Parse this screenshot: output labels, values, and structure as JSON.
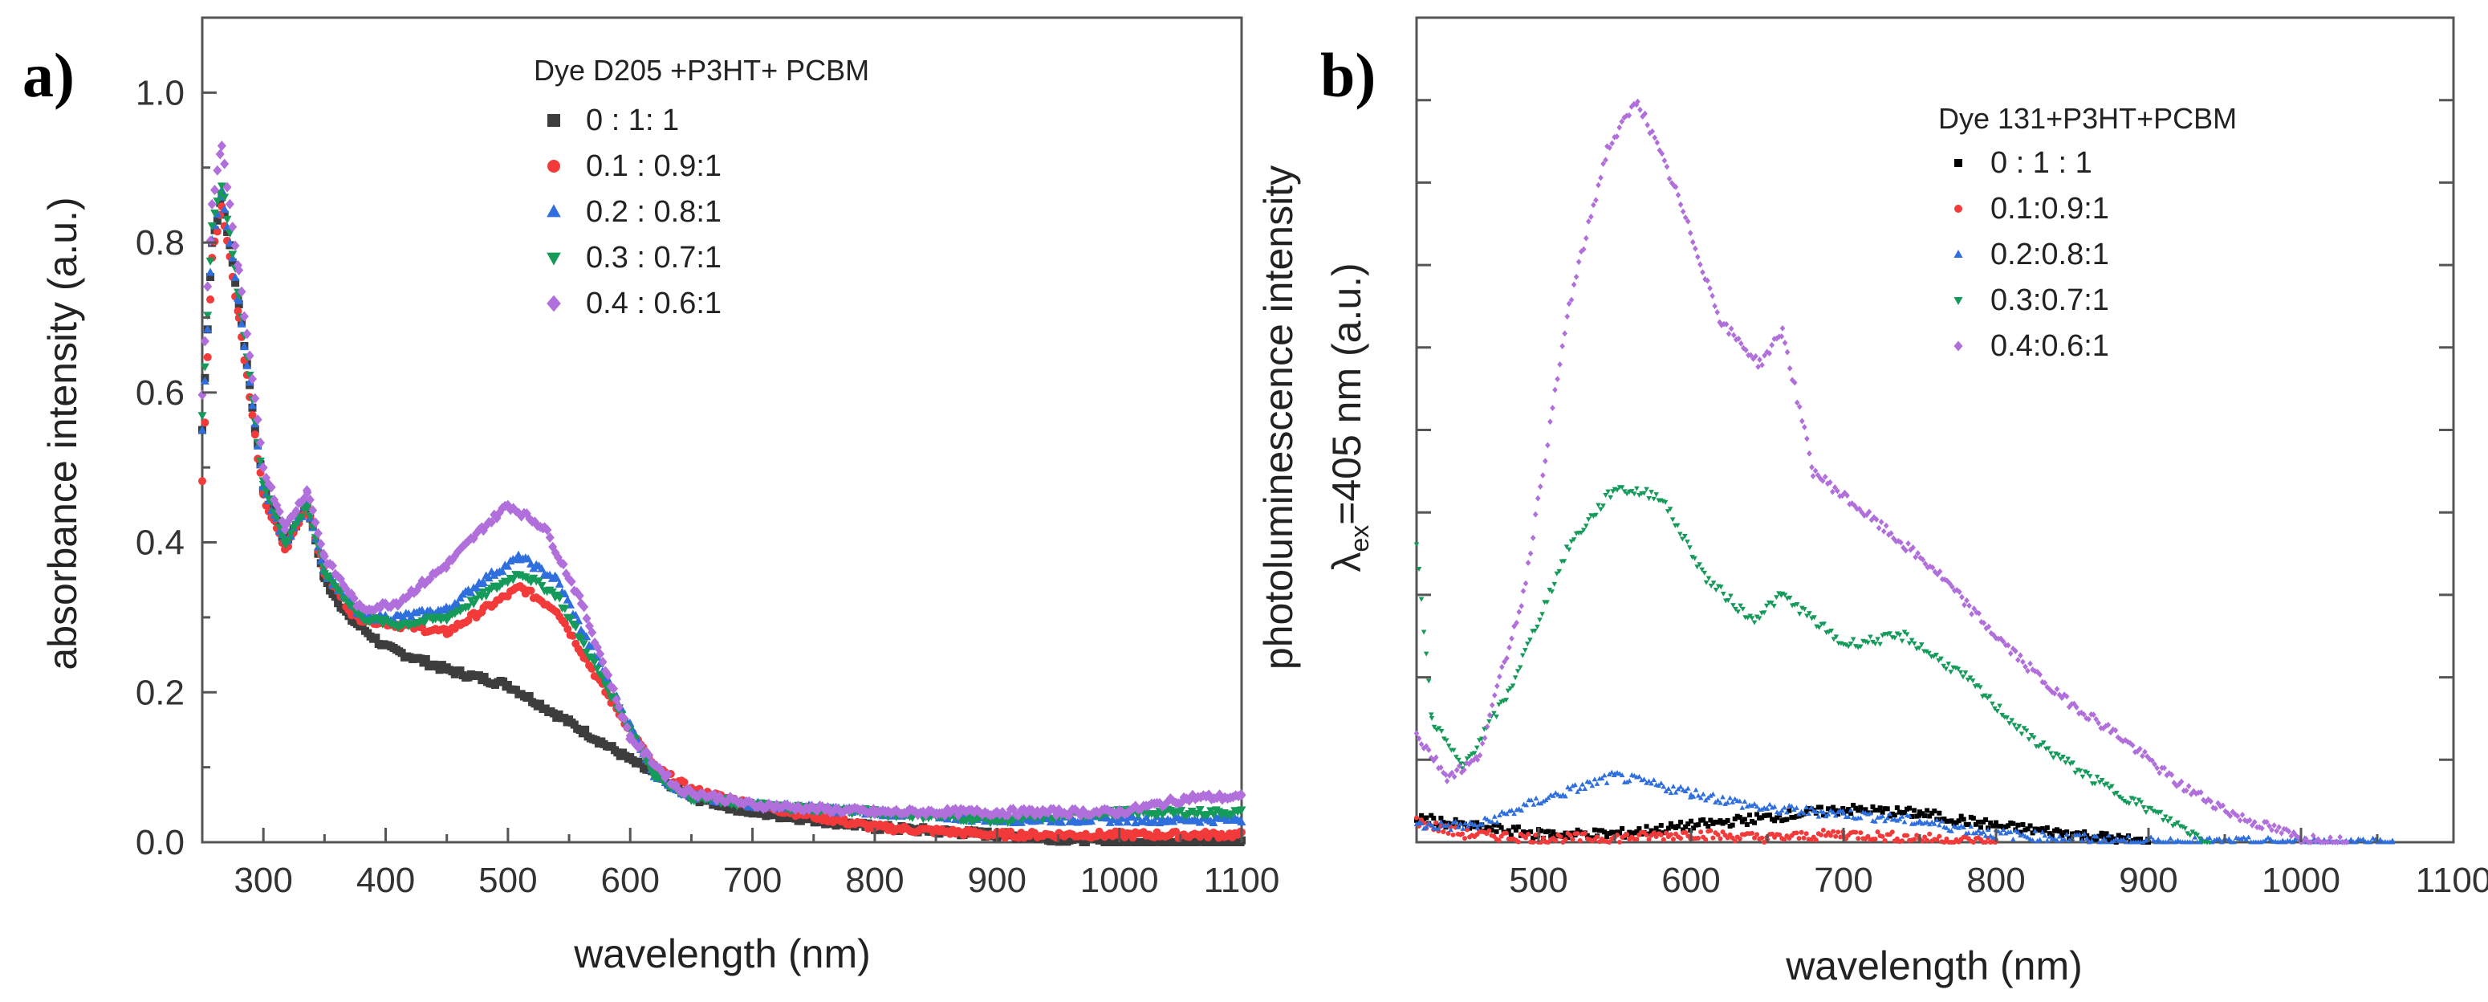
{
  "chart_data": [
    {
      "type": "scatter",
      "panel": "a)",
      "xlabel": "wavelength (nm)",
      "ylabel": "absorbance intensity (a.u.)",
      "xlim": [
        250,
        1100
      ],
      "ylim": [
        0,
        1.1
      ],
      "xticks": [
        300,
        400,
        500,
        600,
        700,
        800,
        900,
        1000,
        1100
      ],
      "yticks": [
        0.0,
        0.2,
        0.4,
        0.6,
        0.8,
        1.0
      ],
      "ytick_labels": [
        "0.0",
        "0.2",
        "0.4",
        "0.6",
        "0.8",
        "1.0"
      ],
      "legend_title": "Dye D205 +P3HT+ PCBM",
      "series": [
        {
          "name": " 0 : 1: 1",
          "color": "#3d3d3d",
          "marker": "square",
          "points": [
            [
              250,
              0.55
            ],
            [
              258,
              0.8
            ],
            [
              266,
              0.86
            ],
            [
              280,
              0.72
            ],
            [
              300,
              0.47
            ],
            [
              318,
              0.4
            ],
            [
              336,
              0.45
            ],
            [
              350,
              0.35
            ],
            [
              370,
              0.3
            ],
            [
              400,
              0.26
            ],
            [
              450,
              0.23
            ],
            [
              500,
              0.21
            ],
            [
              550,
              0.16
            ],
            [
              600,
              0.11
            ],
            [
              650,
              0.06
            ],
            [
              700,
              0.04
            ],
            [
              800,
              0.02
            ],
            [
              900,
              0.01
            ],
            [
              1000,
              0.0
            ],
            [
              1100,
              0.0
            ]
          ]
        },
        {
          "name": "0.1 : 0.9:1",
          "color": "#f33a3a",
          "marker": "circle",
          "points": [
            [
              250,
              0.48
            ],
            [
              258,
              0.78
            ],
            [
              266,
              0.85
            ],
            [
              280,
              0.7
            ],
            [
              300,
              0.46
            ],
            [
              318,
              0.39
            ],
            [
              336,
              0.45
            ],
            [
              350,
              0.36
            ],
            [
              375,
              0.3
            ],
            [
              410,
              0.29
            ],
            [
              450,
              0.28
            ],
            [
              480,
              0.31
            ],
            [
              510,
              0.34
            ],
            [
              540,
              0.31
            ],
            [
              580,
              0.2
            ],
            [
              620,
              0.1
            ],
            [
              650,
              0.07
            ],
            [
              700,
              0.05
            ],
            [
              800,
              0.02
            ],
            [
              900,
              0.01
            ],
            [
              1000,
              0.01
            ],
            [
              1100,
              0.01
            ]
          ]
        },
        {
          "name": "0.2 : 0.8:1",
          "color": "#2f6fdd",
          "marker": "triangle-up",
          "points": [
            [
              250,
              0.55
            ],
            [
              258,
              0.8
            ],
            [
              266,
              0.87
            ],
            [
              280,
              0.72
            ],
            [
              300,
              0.47
            ],
            [
              318,
              0.4
            ],
            [
              336,
              0.45
            ],
            [
              350,
              0.36
            ],
            [
              380,
              0.3
            ],
            [
              410,
              0.3
            ],
            [
              450,
              0.31
            ],
            [
              480,
              0.35
            ],
            [
              510,
              0.38
            ],
            [
              540,
              0.35
            ],
            [
              580,
              0.22
            ],
            [
              620,
              0.09
            ],
            [
              650,
              0.06
            ],
            [
              700,
              0.05
            ],
            [
              800,
              0.04
            ],
            [
              900,
              0.03
            ],
            [
              1000,
              0.03
            ],
            [
              1100,
              0.03
            ]
          ]
        },
        {
          "name": "0.3 : 0.7:1",
          "color": "#159a5a",
          "marker": "triangle-down",
          "points": [
            [
              250,
              0.57
            ],
            [
              258,
              0.82
            ],
            [
              266,
              0.88
            ],
            [
              280,
              0.73
            ],
            [
              300,
              0.48
            ],
            [
              318,
              0.4
            ],
            [
              336,
              0.45
            ],
            [
              350,
              0.36
            ],
            [
              380,
              0.3
            ],
            [
              410,
              0.29
            ],
            [
              450,
              0.3
            ],
            [
              480,
              0.33
            ],
            [
              510,
              0.36
            ],
            [
              540,
              0.33
            ],
            [
              580,
              0.21
            ],
            [
              620,
              0.09
            ],
            [
              650,
              0.06
            ],
            [
              700,
              0.05
            ],
            [
              800,
              0.04
            ],
            [
              900,
              0.03
            ],
            [
              1000,
              0.04
            ],
            [
              1100,
              0.04
            ]
          ]
        },
        {
          "name": "0.4 : 0.6:1",
          "color": "#b06fda",
          "marker": "diamond",
          "points": [
            [
              250,
              0.6
            ],
            [
              258,
              0.85
            ],
            [
              266,
              0.93
            ],
            [
              280,
              0.76
            ],
            [
              300,
              0.5
            ],
            [
              318,
              0.42
            ],
            [
              336,
              0.47
            ],
            [
              350,
              0.38
            ],
            [
              380,
              0.31
            ],
            [
              410,
              0.32
            ],
            [
              450,
              0.37
            ],
            [
              480,
              0.42
            ],
            [
              500,
              0.45
            ],
            [
              530,
              0.42
            ],
            [
              560,
              0.32
            ],
            [
              600,
              0.14
            ],
            [
              640,
              0.07
            ],
            [
              700,
              0.05
            ],
            [
              800,
              0.04
            ],
            [
              900,
              0.04
            ],
            [
              1000,
              0.04
            ],
            [
              1060,
              0.06
            ],
            [
              1100,
              0.06
            ]
          ]
        }
      ]
    },
    {
      "type": "scatter",
      "panel": "b)",
      "xlabel": "wavelength (nm)",
      "ylabel_main": "photoluminescence intensity",
      "ylabel_lambda": "λ",
      "ylabel_sub": "ex",
      "ylabel_rest": "=405 nm (a.u.)",
      "xlim": [
        420,
        1100
      ],
      "ylim": [
        0,
        1.0
      ],
      "xticks": [
        500,
        600,
        700,
        800,
        900,
        1000,
        1100
      ],
      "legend_title": "Dye 131+P3HT+PCBM",
      "series": [
        {
          "name": "0 : 1 : 1",
          "color": "#000000",
          "marker": "square",
          "points": [
            [
              420,
              0.03
            ],
            [
              450,
              0.02
            ],
            [
              500,
              0.01
            ],
            [
              550,
              0.01
            ],
            [
              600,
              0.02
            ],
            [
              650,
              0.03
            ],
            [
              700,
              0.04
            ],
            [
              750,
              0.035
            ],
            [
              800,
              0.02
            ],
            [
              850,
              0.01
            ],
            [
              900,
              0.0
            ]
          ]
        },
        {
          "name": "0.1:0.9:1",
          "color": "#f33a3a",
          "marker": "circle",
          "points": [
            [
              420,
              0.025
            ],
            [
              450,
              0.01
            ],
            [
              500,
              0.005
            ],
            [
              550,
              0.005
            ],
            [
              600,
              0.01
            ],
            [
              650,
              0.005
            ],
            [
              700,
              0.01
            ],
            [
              750,
              0.005
            ],
            [
              800,
              0.0
            ]
          ]
        },
        {
          "name": "0.2:0.8:1",
          "color": "#2f6fdd",
          "marker": "triangle-up",
          "points": [
            [
              420,
              0.02
            ],
            [
              460,
              0.02
            ],
            [
              500,
              0.05
            ],
            [
              550,
              0.08
            ],
            [
              600,
              0.06
            ],
            [
              650,
              0.04
            ],
            [
              700,
              0.035
            ],
            [
              750,
              0.025
            ],
            [
              800,
              0.01
            ],
            [
              850,
              0.005
            ],
            [
              900,
              0.0
            ],
            [
              1060,
              0.0
            ]
          ]
        },
        {
          "name": "0.3:0.7:1",
          "color": "#159a5a",
          "marker": "triangle-down",
          "points": [
            [
              420,
              0.36
            ],
            [
              430,
              0.15
            ],
            [
              450,
              0.09
            ],
            [
              480,
              0.18
            ],
            [
              520,
              0.36
            ],
            [
              550,
              0.43
            ],
            [
              580,
              0.42
            ],
            [
              610,
              0.32
            ],
            [
              640,
              0.27
            ],
            [
              660,
              0.3
            ],
            [
              700,
              0.24
            ],
            [
              740,
              0.25
            ],
            [
              780,
              0.2
            ],
            [
              820,
              0.13
            ],
            [
              860,
              0.08
            ],
            [
              900,
              0.04
            ],
            [
              940,
              0.0
            ]
          ]
        },
        {
          "name": "0.4:0.6:1",
          "color": "#b06fda",
          "marker": "diamond",
          "points": [
            [
              420,
              0.13
            ],
            [
              440,
              0.08
            ],
            [
              460,
              0.1
            ],
            [
              490,
              0.3
            ],
            [
              520,
              0.65
            ],
            [
              545,
              0.84
            ],
            [
              565,
              0.9
            ],
            [
              590,
              0.79
            ],
            [
              620,
              0.63
            ],
            [
              645,
              0.58
            ],
            [
              660,
              0.62
            ],
            [
              680,
              0.45
            ],
            [
              720,
              0.39
            ],
            [
              760,
              0.33
            ],
            [
              800,
              0.25
            ],
            [
              840,
              0.18
            ],
            [
              880,
              0.13
            ],
            [
              920,
              0.07
            ],
            [
              960,
              0.03
            ],
            [
              1000,
              0.005
            ],
            [
              1030,
              0.0
            ]
          ]
        }
      ]
    }
  ]
}
